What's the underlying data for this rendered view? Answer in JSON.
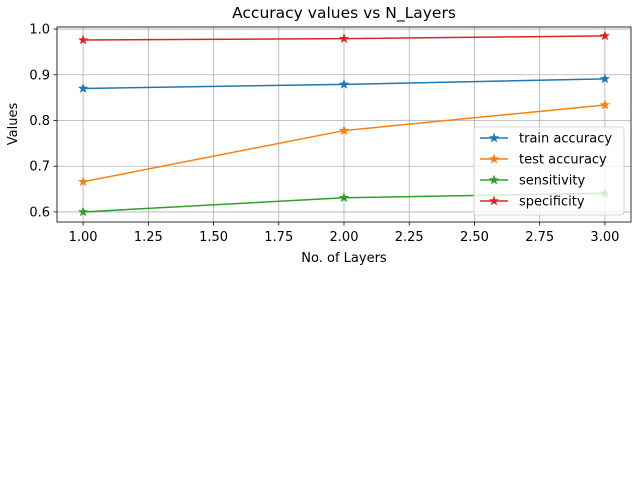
{
  "chart_data": {
    "type": "line",
    "title": "Accuracy values vs N_Layers",
    "xlabel": "No. of Layers",
    "ylabel": "Values",
    "xlim": [
      0.9,
      3.1
    ],
    "ylim": [
      0.578,
      1.0045
    ],
    "grid": true,
    "legend_position": "center-right",
    "marker": "star",
    "x_ticks": [
      1.0,
      1.25,
      1.5,
      1.75,
      2.0,
      2.25,
      2.5,
      2.75,
      3.0
    ],
    "x_tick_labels": [
      "1.00",
      "1.25",
      "1.50",
      "1.75",
      "2.00",
      "2.25",
      "2.50",
      "2.75",
      "3.00"
    ],
    "y_ticks": [
      0.6,
      0.7,
      0.8,
      0.9,
      1.0
    ],
    "y_tick_labels": [
      "0.6",
      "0.7",
      "0.8",
      "0.9",
      "1.0"
    ],
    "x": [
      1,
      2,
      3
    ],
    "series": [
      {
        "name": "train accuracy",
        "color": "#1f77b4",
        "values": [
          0.87,
          0.879,
          0.891
        ]
      },
      {
        "name": "test accuracy",
        "color": "#ff7f0e",
        "values": [
          0.666,
          0.778,
          0.834
        ]
      },
      {
        "name": "sensitivity",
        "color": "#2ca02c",
        "values": [
          0.6,
          0.631,
          0.641
        ]
      },
      {
        "name": "specificity",
        "color": "#d62728",
        "values": [
          0.976,
          0.979,
          0.985
        ]
      }
    ]
  }
}
